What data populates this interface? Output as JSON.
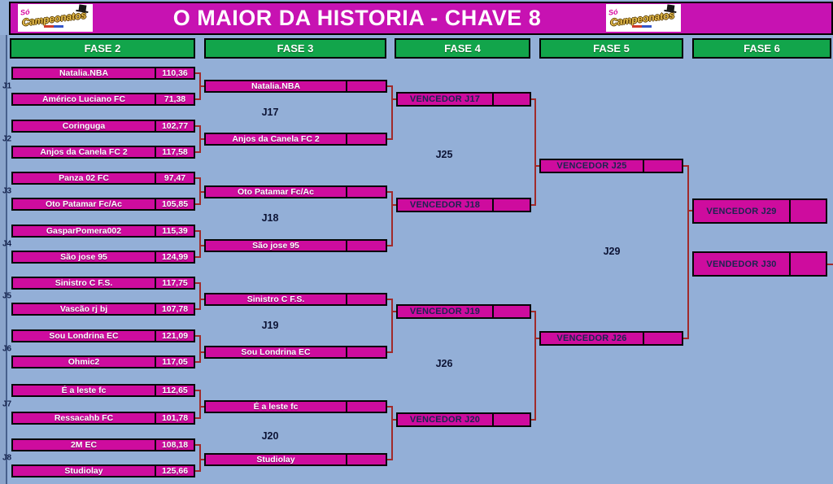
{
  "window": {
    "title": "O MAIOR DA HISTORIA - CHAVE 8"
  },
  "logo": {
    "so": "Só",
    "main": "Campeonatos"
  },
  "phases": [
    {
      "label": "FASE 2"
    },
    {
      "label": "FASE 3"
    },
    {
      "label": "FASE 4"
    },
    {
      "label": "FASE 5"
    },
    {
      "label": "FASE 6"
    }
  ],
  "bracket": {
    "fase2": {
      "matches": [
        {
          "id": "J1",
          "teams": [
            {
              "name": "Natalia.NBA",
              "score": "110,36"
            },
            {
              "name": "Américo Luciano FC",
              "score": "71,38"
            }
          ]
        },
        {
          "id": "J2",
          "teams": [
            {
              "name": "Coringuga",
              "score": "102,77"
            },
            {
              "name": "Anjos da Canela FC 2",
              "score": "117,58"
            }
          ]
        },
        {
          "id": "J3",
          "teams": [
            {
              "name": "Panza 02 FC",
              "score": "97,47"
            },
            {
              "name": "Oto Patamar Fc/Ac",
              "score": "105,85"
            }
          ]
        },
        {
          "id": "J4",
          "teams": [
            {
              "name": "GasparPomera002",
              "score": "115,39"
            },
            {
              "name": "São jose 95",
              "score": "124,99"
            }
          ]
        },
        {
          "id": "J5",
          "teams": [
            {
              "name": "Sinistro C F.S.",
              "score": "117,75"
            },
            {
              "name": "Vascão rj bj",
              "score": "107,78"
            }
          ]
        },
        {
          "id": "J6",
          "teams": [
            {
              "name": "Sou Londrina EC",
              "score": "121,09"
            },
            {
              "name": "Ohmic2",
              "score": "117,05"
            }
          ]
        },
        {
          "id": "J7",
          "teams": [
            {
              "name": "É a leste fc",
              "score": "112,65"
            },
            {
              "name": "Ressacahb FC",
              "score": "101,78"
            }
          ]
        },
        {
          "id": "J8",
          "teams": [
            {
              "name": "2M EC",
              "score": "108,18"
            },
            {
              "name": "Studiolay",
              "score": "125,66"
            }
          ]
        }
      ]
    },
    "fase3": {
      "matches": [
        {
          "id": "J17",
          "teams": [
            {
              "name": "Natalia.NBA",
              "score": ""
            },
            {
              "name": "Anjos da Canela FC 2",
              "score": ""
            }
          ]
        },
        {
          "id": "J18",
          "teams": [
            {
              "name": "Oto Patamar Fc/Ac",
              "score": ""
            },
            {
              "name": "São jose 95",
              "score": ""
            }
          ]
        },
        {
          "id": "J19",
          "teams": [
            {
              "name": "Sinistro C F.S.",
              "score": ""
            },
            {
              "name": "Sou Londrina EC",
              "score": ""
            }
          ]
        },
        {
          "id": "J20",
          "teams": [
            {
              "name": "É a leste fc",
              "score": ""
            },
            {
              "name": "Studiolay",
              "score": ""
            }
          ]
        }
      ]
    },
    "fase4": {
      "matches": [
        {
          "id": "J25",
          "teams": [
            {
              "name": "VENCEDOR J17",
              "score": ""
            },
            {
              "name": "VENCEDOR J18",
              "score": ""
            }
          ]
        },
        {
          "id": "J26",
          "teams": [
            {
              "name": "VENCEDOR J19",
              "score": ""
            },
            {
              "name": "VENCEDOR J20",
              "score": ""
            }
          ]
        }
      ]
    },
    "fase5": {
      "matches": [
        {
          "id": "J29",
          "teams": [
            {
              "name": "VENCEDOR J25",
              "score": ""
            },
            {
              "name": "VENCEDOR J26",
              "score": ""
            }
          ]
        }
      ]
    },
    "fase6": {
      "slots": [
        {
          "name": "VENCEDOR J29",
          "score": ""
        },
        {
          "name": "VENDEDOR J30",
          "score": ""
        }
      ]
    }
  },
  "colors": {
    "title_bar": "#C712B2",
    "box_magenta": "#CE0C9E",
    "phase_green": "#12A54B",
    "background": "#93AFD7",
    "connector_red": "#A12A2A",
    "box_border": "#000000",
    "winner_text_navy": "#1B2550"
  }
}
